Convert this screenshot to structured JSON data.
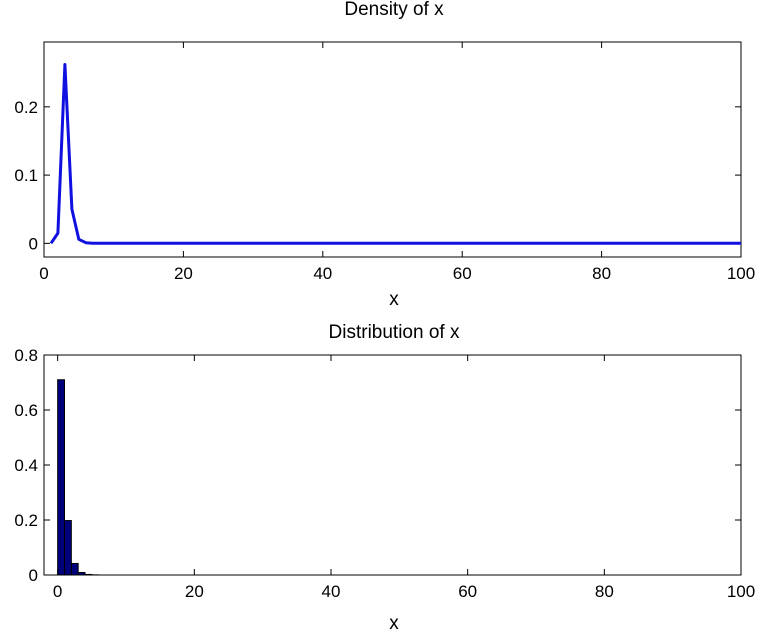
{
  "chart_data": [
    {
      "type": "line",
      "title": "Density of x",
      "xlabel": "x",
      "ylabel": "",
      "xlim": [
        0,
        100
      ],
      "ylim": [
        -0.02,
        0.295
      ],
      "xticks": [
        0,
        20,
        40,
        60,
        80,
        100
      ],
      "yticks": [
        0,
        0.1,
        0.2
      ],
      "grid": false,
      "color": "#1010e0",
      "x": [
        1,
        2,
        3,
        4,
        5,
        6,
        7,
        8,
        9,
        10,
        20,
        40,
        60,
        80,
        100
      ],
      "y": [
        0.0,
        0.015,
        0.262,
        0.05,
        0.006,
        0.001,
        0.0002,
        0.0001,
        0.0,
        0.0,
        0.0,
        0.0,
        0.0,
        0.0,
        0.0
      ]
    },
    {
      "type": "bar",
      "title": "Distribution of x",
      "xlabel": "x",
      "ylabel": "",
      "xlim": [
        -2,
        100
      ],
      "ylim": [
        0,
        0.8
      ],
      "xticks": [
        0,
        20,
        40,
        60,
        80,
        100
      ],
      "yticks": [
        0,
        0.2,
        0.4,
        0.6,
        0.8
      ],
      "grid": false,
      "color": "#00007a",
      "x": [
        0.5,
        1.5,
        2.5,
        3.5,
        4.5,
        5.5
      ],
      "values": [
        0.71,
        0.198,
        0.042,
        0.009,
        0.002,
        0.0005
      ]
    }
  ]
}
